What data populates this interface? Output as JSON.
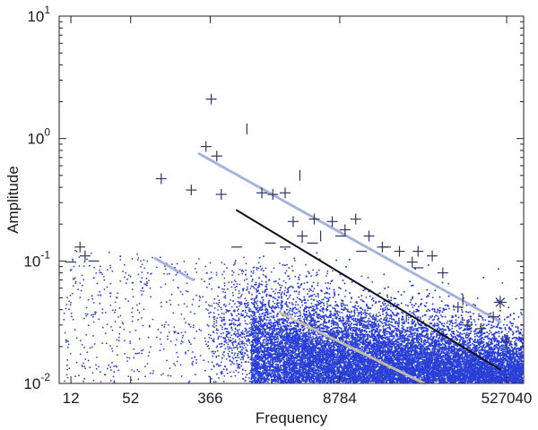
{
  "chart_data": {
    "type": "scatter",
    "title": "",
    "xlabel": "Frequency",
    "ylabel": "Amplitude",
    "xscale": "log",
    "yscale": "log",
    "xlim": [
      9,
      800000
    ],
    "ylim": [
      0.01,
      10
    ],
    "grid": false,
    "x_ticks": [
      {
        "value": 12,
        "label": "12"
      },
      {
        "value": 52,
        "label": "52"
      },
      {
        "value": 366,
        "label": "366"
      },
      {
        "value": 8784,
        "label": "8784"
      },
      {
        "value": 527040,
        "label": "527040"
      }
    ],
    "y_ticks": [
      {
        "value": 0.01,
        "base": "10",
        "exp": "-2"
      },
      {
        "value": 0.1,
        "base": "10",
        "exp": "-1"
      },
      {
        "value": 1,
        "base": "10",
        "exp": "0"
      },
      {
        "value": 10,
        "base": "10",
        "exp": "1"
      }
    ],
    "series": [
      {
        "marker": "+",
        "color": "#333366",
        "points": [
          [
            15,
            0.13
          ],
          [
            17,
            0.11
          ],
          [
            110,
            0.47
          ],
          [
            230,
            0.38
          ],
          [
            330,
            0.86
          ],
          [
            375,
            2.1
          ],
          [
            430,
            0.72
          ],
          [
            480,
            0.35
          ],
          [
            1300,
            0.36
          ],
          [
            1700,
            0.35
          ],
          [
            2300,
            0.36
          ],
          [
            2800,
            0.21
          ],
          [
            3500,
            0.16
          ],
          [
            4700,
            0.22
          ],
          [
            7300,
            0.21
          ],
          [
            10000,
            0.18
          ],
          [
            13000,
            0.22
          ],
          [
            18000,
            0.16
          ],
          [
            25000,
            0.13
          ],
          [
            38000,
            0.12
          ],
          [
            52000,
            0.098
          ],
          [
            60000,
            0.12
          ],
          [
            85000,
            0.11
          ],
          [
            110000,
            0.08
          ],
          [
            160000,
            0.042
          ],
          [
            200000,
            0.03
          ],
          [
            280000,
            0.028
          ],
          [
            380000,
            0.035
          ],
          [
            530000,
            0.022
          ]
        ]
      },
      {
        "marker": "-",
        "color": "#333366",
        "points": [
          [
            12,
            0.098
          ],
          [
            21,
            0.1
          ],
          [
            700,
            0.13
          ],
          [
            1600,
            0.14
          ],
          [
            2300,
            0.13
          ],
          [
            4500,
            0.14
          ],
          [
            9000,
            0.16
          ],
          [
            15000,
            0.12
          ],
          [
            27000,
            0.13
          ],
          [
            60000,
            0.088
          ]
        ]
      },
      {
        "marker": "|",
        "color": "#333366",
        "points": [
          [
            900,
            1.2
          ],
          [
            3300,
            0.5
          ],
          [
            5500,
            0.16
          ],
          [
            45000,
            0.035
          ],
          [
            180000,
            0.048
          ]
        ]
      },
      {
        "marker": "*",
        "color": "#333366",
        "points": [
          [
            450000,
            0.046
          ]
        ]
      }
    ],
    "fit_lines": [
      {
        "color": "#9aa6d6",
        "x": [
          280,
          450000
        ],
        "y": [
          0.75,
          0.032
        ]
      },
      {
        "color": "#9aa6d6",
        "x": [
          95,
          240
        ],
        "y": [
          0.105,
          0.07
        ]
      },
      {
        "color": "#101020",
        "x": [
          700,
          450000
        ],
        "y": [
          0.26,
          0.013
        ]
      },
      {
        "color": "#d8cfa0",
        "x": [
          2000,
          70000
        ],
        "y": [
          0.038,
          0.01
        ]
      }
    ]
  }
}
